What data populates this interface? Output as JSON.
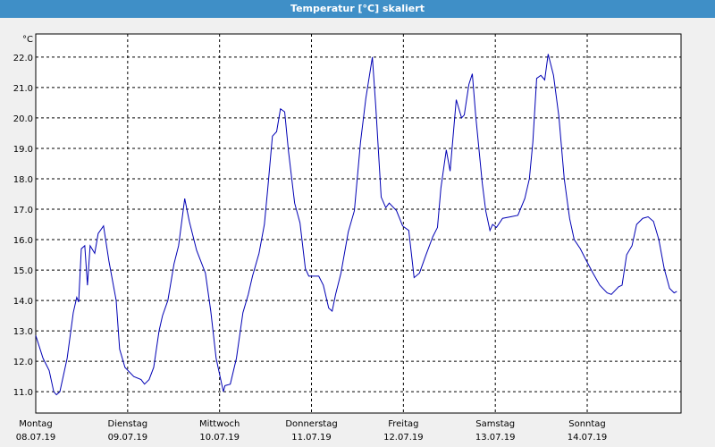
{
  "chart_data": {
    "type": "line",
    "title": "Temperatur [°C] skaliert",
    "y_unit": "°C",
    "xlim": [
      0,
      168.5
    ],
    "ylim": [
      10.3,
      22.76
    ],
    "xticks": [
      {
        "value": 0,
        "label": "Montag"
      },
      {
        "value": 24,
        "label": "Dienstag"
      },
      {
        "value": 48,
        "label": "Mittwoch"
      },
      {
        "value": 72,
        "label": "Donnerstag"
      },
      {
        "value": 96,
        "label": "Freitag"
      },
      {
        "value": 120,
        "label": "Samstag"
      },
      {
        "value": 144,
        "label": "Sonntag"
      }
    ],
    "xtick_dates": [
      "08.07.19",
      "09.07.19",
      "10.07.19",
      "11.07.19",
      "12.07.19",
      "13.07.19",
      "14.07.19"
    ],
    "yticks": [
      {
        "value": 11,
        "label": "11.0"
      },
      {
        "value": 12,
        "label": "12.0"
      },
      {
        "value": 13,
        "label": "13.0"
      },
      {
        "value": 14,
        "label": "14.0"
      },
      {
        "value": 15,
        "label": "15.0"
      },
      {
        "value": 16,
        "label": "16.0"
      },
      {
        "value": 17,
        "label": "17.0"
      },
      {
        "value": 18,
        "label": "18.0"
      },
      {
        "value": 19,
        "label": "19.0"
      },
      {
        "value": 20,
        "label": "20.0"
      },
      {
        "value": 21,
        "label": "21.0"
      },
      {
        "value": 22,
        "label": "22.0"
      }
    ],
    "grid": true,
    "series": [
      {
        "color": "#0000b4",
        "x": [
          0,
          1.9,
          3.5,
          4.7,
          5.4,
          6.3,
          8.2,
          9.8,
          10.7,
          11.2,
          11.9,
          12.8,
          13.5,
          14.2,
          15.4,
          16.3,
          17.7,
          19.1,
          21,
          21.9,
          23.3,
          25.6,
          27.5,
          28.4,
          29.6,
          30.8,
          32.2,
          33.1,
          34.5,
          36.1,
          37.3,
          38.9,
          40.1,
          42,
          44.3,
          45.7,
          47.1,
          48.3,
          49,
          49.4,
          50.8,
          52.4,
          54.1,
          55.5,
          56.6,
          58.3,
          59.7,
          60.6,
          61.8,
          62.9,
          63.9,
          65,
          66,
          67.6,
          69,
          70.4,
          71.3,
          72.7,
          73.9,
          75.1,
          76.5,
          77.4,
          78.3,
          79.7,
          81.6,
          83.2,
          84.8,
          86.2,
          87.9,
          88.8,
          90.2,
          91.4,
          92.3,
          94.2,
          95.8,
          97.4,
          98.8,
          100.2,
          101.9,
          103.7,
          104.9,
          105.8,
          107.2,
          108.2,
          109.8,
          111.2,
          111.9,
          113.1,
          114,
          114.9,
          116.6,
          117.5,
          118.6,
          119.3,
          120.3,
          121.9,
          124,
          125.9,
          127.7,
          128.9,
          129.8,
          130.8,
          131.9,
          132.9,
          133.8,
          135.2,
          136.6,
          138,
          139.4,
          140.6,
          142.2,
          143.6,
          145.5,
          147.3,
          149.2,
          150.3,
          152.2,
          153.1,
          154.3,
          155.7,
          156.9,
          158.5,
          159.9,
          161.3,
          162.7,
          164.1,
          165.5,
          166.7,
          167.4
        ],
        "values": [
          12.85,
          12.1,
          11.7,
          11.0,
          10.9,
          11.0,
          12.1,
          13.6,
          14.1,
          13.95,
          15.7,
          15.8,
          14.5,
          15.8,
          15.55,
          16.2,
          16.45,
          15.3,
          14.0,
          12.4,
          11.8,
          11.5,
          11.4,
          11.25,
          11.4,
          11.8,
          13.0,
          13.5,
          14.0,
          15.2,
          15.8,
          17.35,
          16.6,
          15.65,
          14.9,
          13.65,
          12.1,
          11.4,
          11.0,
          11.2,
          11.25,
          12.1,
          13.6,
          14.2,
          14.8,
          15.55,
          16.5,
          17.7,
          19.4,
          19.55,
          20.3,
          20.2,
          18.9,
          17.2,
          16.55,
          15.05,
          14.8,
          14.8,
          14.8,
          14.5,
          13.75,
          13.65,
          14.2,
          14.9,
          16.25,
          16.95,
          19.2,
          20.65,
          22.0,
          20.35,
          17.4,
          17.05,
          17.2,
          16.95,
          16.45,
          16.3,
          14.75,
          14.9,
          15.5,
          16.1,
          16.4,
          17.7,
          18.95,
          18.25,
          20.6,
          20.0,
          20.1,
          21.1,
          21.45,
          20.05,
          17.85,
          16.95,
          16.3,
          16.5,
          16.4,
          16.7,
          16.75,
          16.8,
          17.35,
          18.0,
          19.2,
          21.3,
          21.4,
          21.25,
          22.1,
          21.4,
          20.05,
          18.0,
          16.7,
          16.0,
          15.7,
          15.35,
          14.9,
          14.5,
          14.25,
          14.2,
          14.45,
          14.5,
          15.5,
          15.8,
          16.5,
          16.7,
          16.75,
          16.6,
          16.0,
          15.05,
          14.4,
          14.25,
          14.3
        ]
      }
    ]
  }
}
